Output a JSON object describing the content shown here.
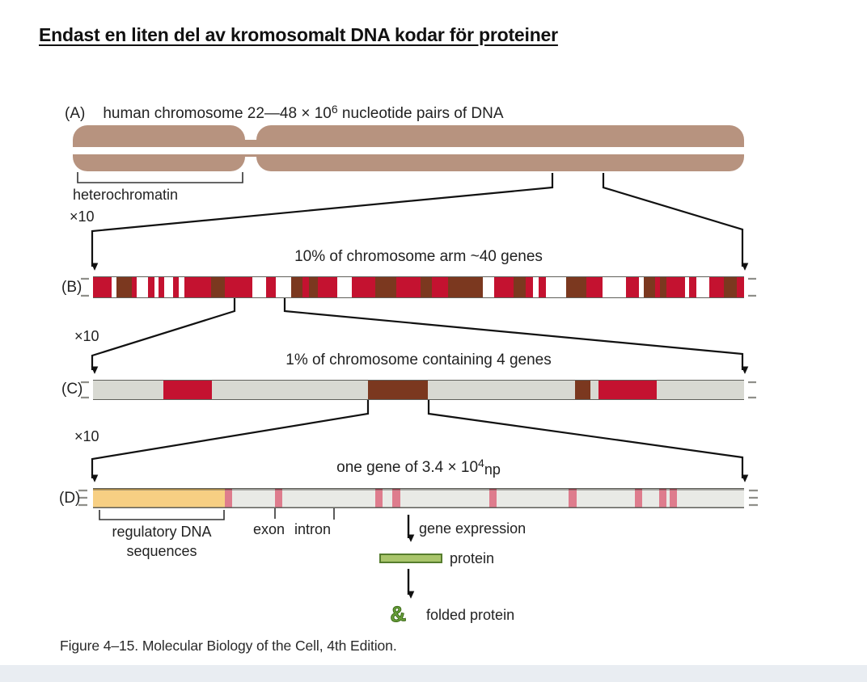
{
  "title": "Endast en liten del av kromosomalt DNA kodar för proteiner",
  "zoom_label": "×10",
  "colors": {
    "chromosome": "#b7937f",
    "red": "#c41230",
    "brown": "#7b381f",
    "white": "#ffffff",
    "graybar": "#d8d9d2",
    "orange": "#f0a81e",
    "protein_fill": "#a9c56b",
    "protein_border": "#567d2e",
    "band": "#e9edf2"
  },
  "panelA": {
    "tag": "(A)",
    "caption_pre": "human chromosome 22—48 × 10",
    "caption_exp": "6",
    "caption_post": " nucleotide pairs of DNA",
    "bracket_label": "heterochromatin"
  },
  "panelB": {
    "tag": "(B)",
    "caption": "10% of chromosome arm ~40 genes",
    "segments": [
      {
        "c": "red",
        "w": 3.0
      },
      {
        "c": "white",
        "w": 0.8
      },
      {
        "c": "brown",
        "w": 2.4
      },
      {
        "c": "red",
        "w": 0.8
      },
      {
        "c": "white",
        "w": 1.8
      },
      {
        "c": "red",
        "w": 1.0
      },
      {
        "c": "white",
        "w": 0.6
      },
      {
        "c": "red",
        "w": 1.0
      },
      {
        "c": "white",
        "w": 1.4
      },
      {
        "c": "red",
        "w": 0.9
      },
      {
        "c": "white",
        "w": 0.9
      },
      {
        "c": "red",
        "w": 4.2
      },
      {
        "c": "brown",
        "w": 2.2
      },
      {
        "c": "red",
        "w": 4.4
      },
      {
        "c": "white",
        "w": 2.2
      },
      {
        "c": "red",
        "w": 1.6
      },
      {
        "c": "white",
        "w": 2.4
      },
      {
        "c": "brown",
        "w": 1.8
      },
      {
        "c": "red",
        "w": 1.0
      },
      {
        "c": "brown",
        "w": 1.4
      },
      {
        "c": "red",
        "w": 3.2
      },
      {
        "c": "white",
        "w": 2.2
      },
      {
        "c": "red",
        "w": 3.8
      },
      {
        "c": "brown",
        "w": 3.4
      },
      {
        "c": "red",
        "w": 3.8
      },
      {
        "c": "brown",
        "w": 1.8
      },
      {
        "c": "red",
        "w": 2.6
      },
      {
        "c": "brown",
        "w": 5.6
      },
      {
        "c": "white",
        "w": 1.8
      },
      {
        "c": "red",
        "w": 3.0
      },
      {
        "c": "brown",
        "w": 2.0
      },
      {
        "c": "red",
        "w": 1.2
      },
      {
        "c": "white",
        "w": 0.8
      },
      {
        "c": "red",
        "w": 1.2
      },
      {
        "c": "white",
        "w": 3.2
      },
      {
        "c": "brown",
        "w": 3.2
      },
      {
        "c": "red",
        "w": 2.6
      },
      {
        "c": "white",
        "w": 3.8
      },
      {
        "c": "red",
        "w": 2.0
      },
      {
        "c": "white",
        "w": 0.8
      },
      {
        "c": "brown",
        "w": 1.8
      },
      {
        "c": "red",
        "w": 0.8
      },
      {
        "c": "brown",
        "w": 1.0
      },
      {
        "c": "red",
        "w": 3.0
      },
      {
        "c": "white",
        "w": 0.6
      },
      {
        "c": "red",
        "w": 1.2
      },
      {
        "c": "white",
        "w": 2.0
      },
      {
        "c": "red",
        "w": 2.4
      },
      {
        "c": "brown",
        "w": 2.0
      },
      {
        "c": "red",
        "w": 1.2
      }
    ]
  },
  "panelC": {
    "tag": "(C)",
    "caption": "1% of chromosome containing 4 genes",
    "segments": [
      {
        "c": "graybar",
        "w": 10.8
      },
      {
        "c": "red",
        "w": 7.4
      },
      {
        "c": "graybar",
        "w": 24.0
      },
      {
        "c": "brown",
        "w": 9.2
      },
      {
        "c": "graybar",
        "w": 22.6
      },
      {
        "c": "brown",
        "w": 2.4
      },
      {
        "c": "graybar",
        "w": 1.2
      },
      {
        "c": "red",
        "w": 9.0
      },
      {
        "c": "graybar",
        "w": 13.4
      }
    ]
  },
  "panelD": {
    "tag": "(D)",
    "caption_pre": "one gene of 3.4 × 10",
    "caption_exp": "4",
    "caption_unit": "np",
    "orange_width_pct": 20.2,
    "exon_marks_pct": [
      20.2,
      27.9,
      43.3,
      46.0,
      60.9,
      73.1,
      83.2,
      86.9,
      88.6
    ],
    "regulatory_line1": "regulatory DNA",
    "regulatory_line2": "sequences",
    "exon_intron_label": "exon intron",
    "gene_expression_label": "gene expression",
    "protein_label": "protein",
    "folded_protein_label": "folded protein",
    "folded_protein_glyph": "&"
  },
  "figure_caption": "Figure 4–15. Molecular Biology of the Cell, 4th Edition."
}
